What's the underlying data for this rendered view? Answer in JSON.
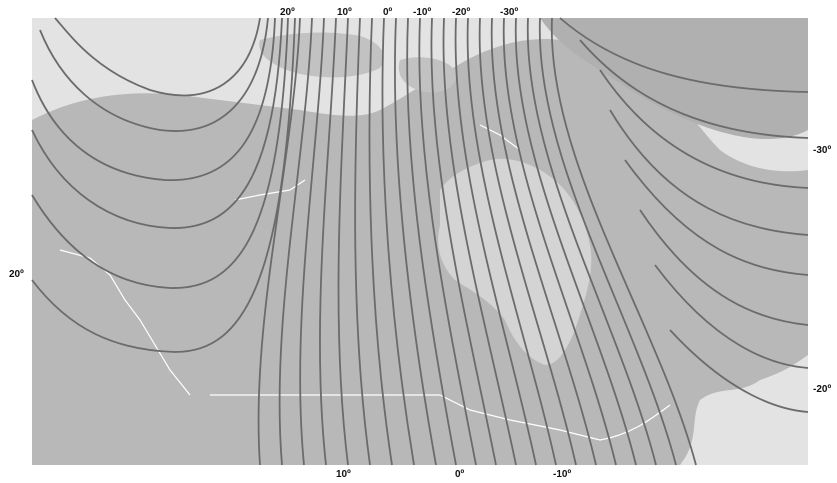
{
  "header": {
    "caption": ""
  },
  "colors": {
    "sea": "#e3e3e3",
    "land": "#b8b8b8",
    "ice": "#cfcfcf",
    "contour": "#6b6b6b",
    "coast": "#ffffff",
    "label": "#111111"
  },
  "labels": {
    "top": [
      "20º",
      "10º",
      "0º",
      "-10º",
      "-20º",
      "-30º"
    ],
    "bottom": [
      "10º",
      "0º",
      "-10º"
    ],
    "left": [
      "20º"
    ],
    "right_top": "-30º",
    "right_bottom": "-20º"
  }
}
